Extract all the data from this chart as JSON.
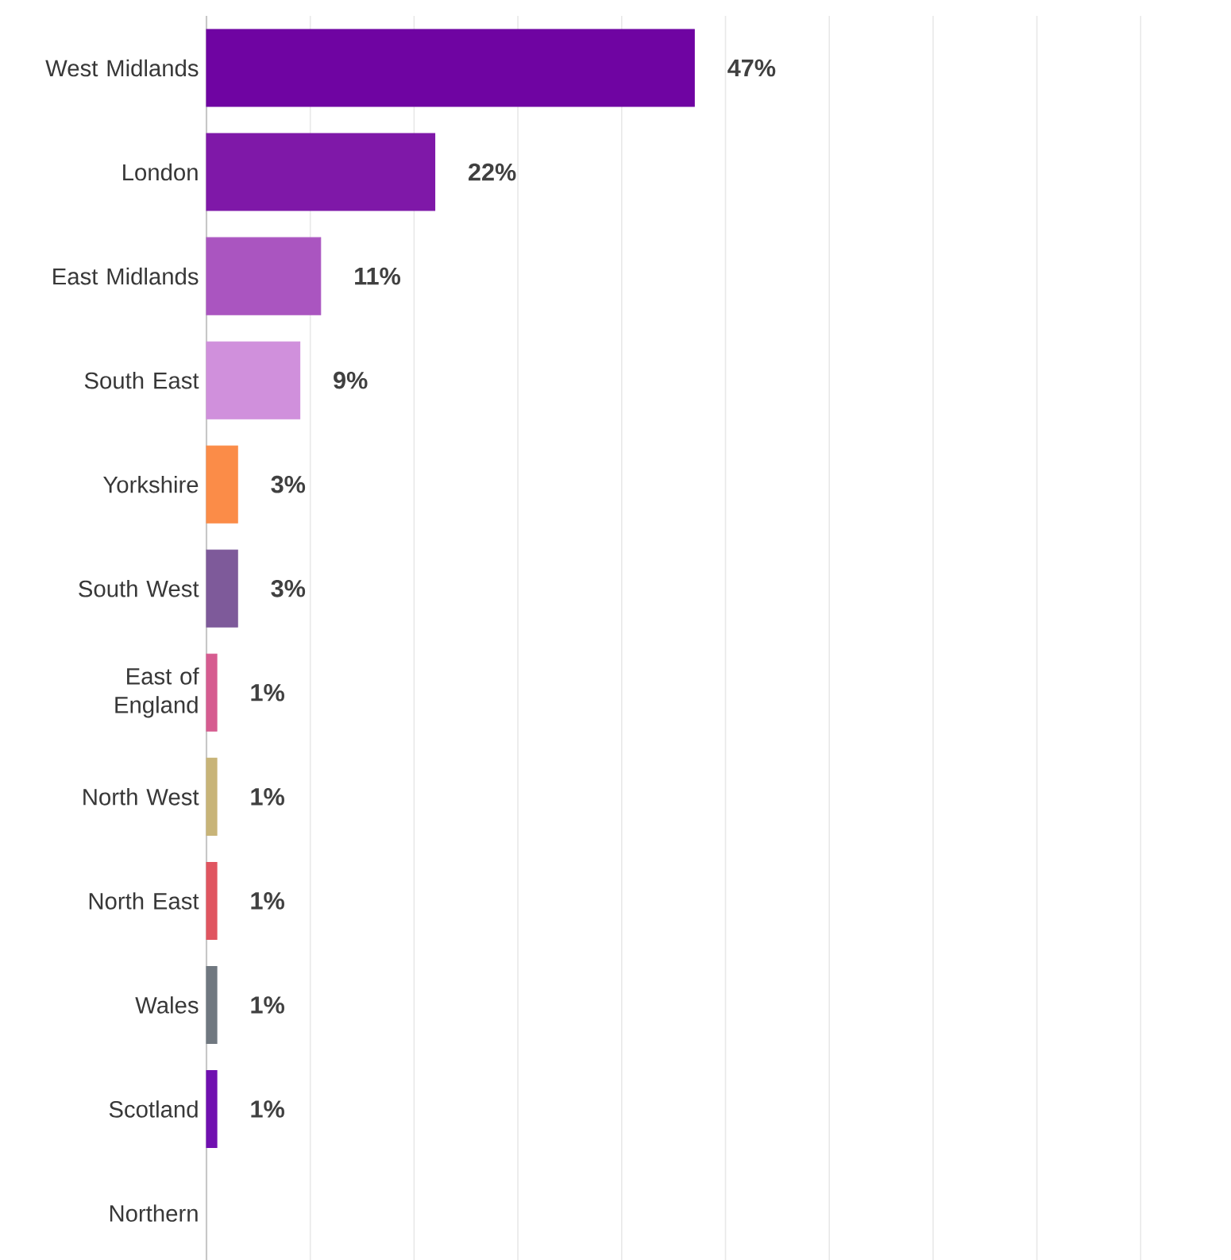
{
  "chart_data": {
    "type": "bar",
    "orientation": "horizontal",
    "categories": [
      "West Midlands",
      "London",
      "East Midlands",
      "South East",
      "Yorkshire",
      "South West",
      "East of England",
      "North West",
      "North East",
      "Wales",
      "Scotland",
      "Northern"
    ],
    "values": [
      47,
      22,
      11,
      9,
      3,
      3,
      1,
      1,
      1,
      1,
      1,
      null
    ],
    "value_labels": [
      "47%",
      "22%",
      "11%",
      "9%",
      "3%",
      "3%",
      "1%",
      "1%",
      "1%",
      "1%",
      "1%",
      null
    ],
    "colors": [
      "#6f04a2",
      "#7f18a8",
      "#aa55c0",
      "#d090dc",
      "#fb8c48",
      "#7e5a9a",
      "#d65c90",
      "#c8b478",
      "#e05560",
      "#707880",
      "#7010b0",
      "#888888"
    ],
    "grid": "x",
    "tick_labels": "y"
  }
}
